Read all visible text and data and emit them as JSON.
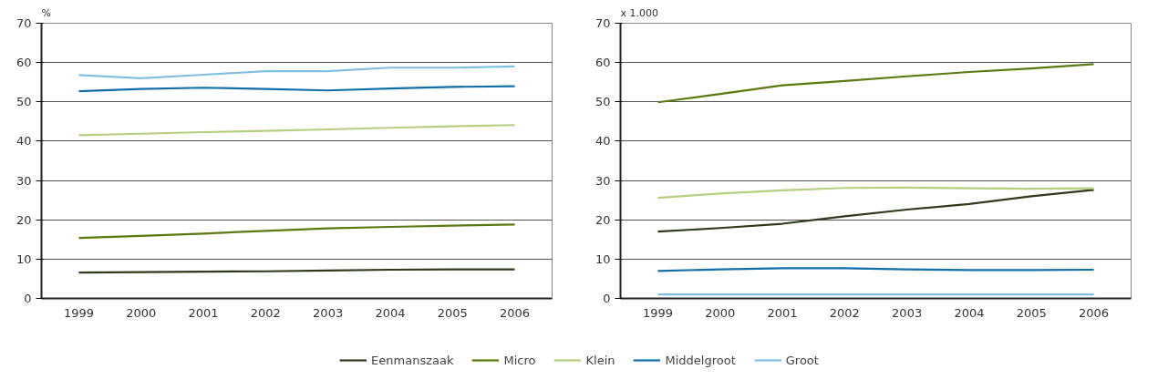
{
  "chart_data": [
    {
      "type": "line",
      "ylabel": "%",
      "categories": [
        "1999",
        "2000",
        "2001",
        "2002",
        "2003",
        "2004",
        "2005",
        "2006"
      ],
      "ylim": [
        0,
        70
      ],
      "yticks": [
        0,
        10,
        20,
        30,
        40,
        50,
        60,
        70
      ],
      "grid": "y",
      "legend": "bottom",
      "marker": "none",
      "series": [
        {
          "name": "Eenmanszaak",
          "color": "#2e3a1a",
          "values": [
            6.6,
            6.7,
            6.8,
            6.9,
            7.1,
            7.3,
            7.4,
            7.4
          ]
        },
        {
          "name": "Micro",
          "color": "#5a7a10",
          "values": [
            15.4,
            15.9,
            16.5,
            17.2,
            17.8,
            18.2,
            18.5,
            18.8
          ]
        },
        {
          "name": "Klein",
          "color": "#b6cf7e",
          "values": [
            41.5,
            41.9,
            42.3,
            42.6,
            43.0,
            43.4,
            43.8,
            44.1
          ]
        },
        {
          "name": "Middelgroot",
          "color": "#0f6fa8",
          "values": [
            52.7,
            53.3,
            53.6,
            53.3,
            52.9,
            53.4,
            53.8,
            54.0
          ]
        },
        {
          "name": "Groot",
          "color": "#7fc0e0",
          "values": [
            56.8,
            56.0,
            56.9,
            57.8,
            57.8,
            58.7,
            58.7,
            59.0
          ]
        }
      ]
    },
    {
      "type": "line",
      "ylabel": "x 1.000",
      "categories": [
        "1999",
        "2000",
        "2001",
        "2002",
        "2003",
        "2004",
        "2005",
        "2006"
      ],
      "ylim": [
        0,
        70
      ],
      "yticks": [
        0,
        10,
        20,
        30,
        40,
        50,
        60,
        70
      ],
      "grid": "y",
      "marker": "none",
      "series": [
        {
          "color": "#2e3a1a",
          "values": [
            17.0,
            17.9,
            19.0,
            20.9,
            22.6,
            24.0,
            26.0,
            27.6
          ]
        },
        {
          "color": "#5a7a10",
          "values": [
            49.9,
            52.0,
            54.2,
            55.3,
            56.5,
            57.6,
            58.5,
            59.6
          ]
        },
        {
          "color": "#b6cf7e",
          "values": [
            25.6,
            26.7,
            27.5,
            28.1,
            28.2,
            28.0,
            27.9,
            28.0
          ]
        },
        {
          "color": "#0f6fa8",
          "values": [
            7.0,
            7.4,
            7.7,
            7.7,
            7.4,
            7.2,
            7.2,
            7.3
          ]
        },
        {
          "color": "#7fc0e0",
          "values": [
            1,
            1,
            1,
            1,
            1,
            1,
            1,
            1
          ]
        }
      ]
    }
  ]
}
